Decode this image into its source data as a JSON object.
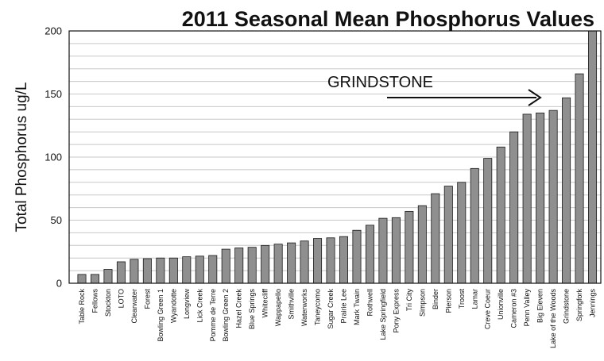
{
  "chart_data": {
    "type": "bar",
    "title": "2011 Seasonal Mean Phosphorus Values",
    "ylabel": "Total Phosphorus ug/L",
    "xlabel": "",
    "ylim": [
      0,
      200
    ],
    "yticks": [
      0,
      50,
      100,
      150,
      200
    ],
    "grid": true,
    "annotation": {
      "text": "GRINDSTONE",
      "arrow": true
    },
    "categories": [
      "Table Rock",
      "Fellows",
      "Stockton",
      "LOTO",
      "Clearwater",
      "Forest",
      "Bowling Green 1",
      "Wyandotte",
      "Longview",
      "Lick Creek",
      "Pomme de Terre",
      "Bowling Green 2",
      "Hazel Creek",
      "Blue Springs",
      "Whitecliff",
      "Wappapello",
      "Smithville",
      "Waterworks",
      "Taneycomo",
      "Sugar Creek",
      "Prairie Lee",
      "Mark Twain",
      "Rothwell",
      "Lake Springfield",
      "Pony Express",
      "Tri City",
      "Simpson",
      "Binder",
      "Pierson",
      "Troost",
      "Lamar",
      "Creve Coeur",
      "Unionville",
      "Cameron #3",
      "Penn Valley",
      "Big Eleven",
      "Lake of the Woods",
      "Grindstone",
      "Springfork",
      "Jennings"
    ],
    "values": [
      7,
      7,
      11,
      17,
      19,
      19.5,
      20,
      20,
      21,
      21.5,
      22,
      27,
      28,
      28.5,
      30,
      31,
      32,
      33.5,
      35.5,
      36,
      37,
      42,
      46,
      51.5,
      52,
      57,
      61.5,
      71,
      77,
      80,
      91,
      99,
      108,
      120,
      134,
      135,
      137,
      147,
      166,
      200
    ],
    "colors": {
      "bar": "#8f8f8f",
      "bar_edge": "#1a1a1a",
      "grid": "#c8c8c8"
    }
  }
}
